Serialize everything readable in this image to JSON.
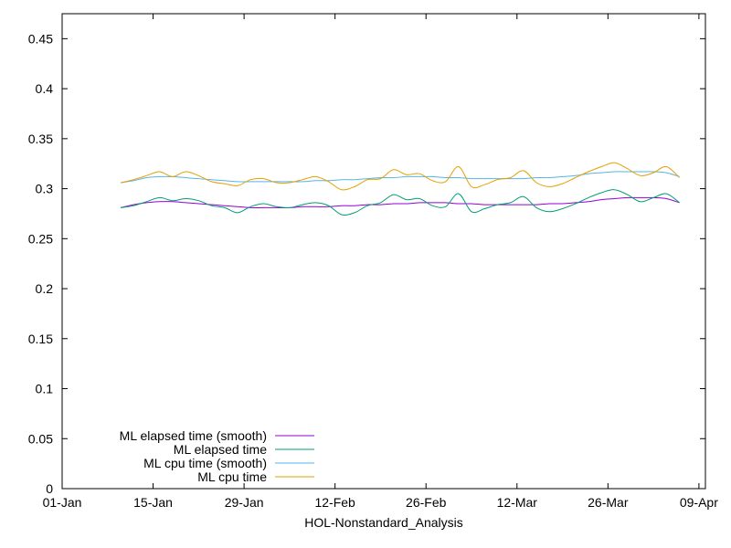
{
  "chart_data": {
    "type": "line",
    "title": "",
    "xlabel": "HOL-Nonstandard_Analysis",
    "ylabel": "",
    "x_ticks": [
      "01-Jan",
      "15-Jan",
      "29-Jan",
      "12-Feb",
      "26-Feb",
      "12-Mar",
      "26-Mar",
      "09-Apr"
    ],
    "x_range": [
      "2020-01-01",
      "2020-04-09"
    ],
    "y_ticks": [
      "0",
      "0.05",
      "0.1",
      "0.15",
      "0.2",
      "0.25",
      "0.3",
      "0.35",
      "0.4",
      "0.45"
    ],
    "ylim": [
      0,
      0.475
    ],
    "grid": false,
    "legend_position": "bottom-left",
    "x": [
      "2020-01-10",
      "2020-01-12",
      "2020-01-14",
      "2020-01-16",
      "2020-01-18",
      "2020-01-20",
      "2020-01-22",
      "2020-01-24",
      "2020-01-26",
      "2020-01-28",
      "2020-01-30",
      "2020-02-01",
      "2020-02-03",
      "2020-02-05",
      "2020-02-07",
      "2020-02-09",
      "2020-02-11",
      "2020-02-13",
      "2020-02-15",
      "2020-02-17",
      "2020-02-19",
      "2020-02-21",
      "2020-02-23",
      "2020-02-25",
      "2020-02-27",
      "2020-02-29",
      "2020-03-02",
      "2020-03-04",
      "2020-03-06",
      "2020-03-08",
      "2020-03-10",
      "2020-03-12",
      "2020-03-14",
      "2020-03-16",
      "2020-03-18",
      "2020-03-20",
      "2020-03-22",
      "2020-03-24",
      "2020-03-26",
      "2020-03-28",
      "2020-03-30",
      "2020-04-01",
      "2020-04-03",
      "2020-04-05"
    ],
    "series": [
      {
        "name": "ML elapsed time (smooth)",
        "color": "#9400d3",
        "values": [
          0.281,
          0.284,
          0.286,
          0.287,
          0.287,
          0.286,
          0.285,
          0.284,
          0.283,
          0.282,
          0.281,
          0.281,
          0.281,
          0.281,
          0.282,
          0.282,
          0.282,
          0.283,
          0.283,
          0.284,
          0.284,
          0.285,
          0.285,
          0.286,
          0.286,
          0.286,
          0.285,
          0.285,
          0.284,
          0.284,
          0.284,
          0.284,
          0.284,
          0.285,
          0.285,
          0.286,
          0.287,
          0.289,
          0.29,
          0.291,
          0.291,
          0.291,
          0.29,
          0.286
        ]
      },
      {
        "name": "ML elapsed time",
        "color": "#009e73",
        "values": [
          0.281,
          0.283,
          0.287,
          0.291,
          0.288,
          0.29,
          0.288,
          0.283,
          0.281,
          0.276,
          0.282,
          0.285,
          0.282,
          0.281,
          0.284,
          0.286,
          0.283,
          0.274,
          0.276,
          0.283,
          0.286,
          0.294,
          0.289,
          0.29,
          0.283,
          0.282,
          0.295,
          0.277,
          0.28,
          0.284,
          0.286,
          0.292,
          0.281,
          0.277,
          0.28,
          0.285,
          0.291,
          0.296,
          0.299,
          0.294,
          0.287,
          0.291,
          0.295,
          0.286
        ]
      },
      {
        "name": "ML cpu time (smooth)",
        "color": "#56b4e9",
        "values": [
          0.306,
          0.308,
          0.311,
          0.312,
          0.312,
          0.311,
          0.31,
          0.309,
          0.308,
          0.307,
          0.307,
          0.307,
          0.307,
          0.307,
          0.307,
          0.308,
          0.308,
          0.309,
          0.309,
          0.31,
          0.311,
          0.311,
          0.312,
          0.312,
          0.312,
          0.311,
          0.311,
          0.31,
          0.31,
          0.31,
          0.31,
          0.31,
          0.311,
          0.311,
          0.312,
          0.313,
          0.315,
          0.316,
          0.317,
          0.317,
          0.317,
          0.317,
          0.316,
          0.312
        ]
      },
      {
        "name": "ML cpu time",
        "color": "#e69f00",
        "values": [
          0.306,
          0.309,
          0.313,
          0.317,
          0.312,
          0.317,
          0.313,
          0.307,
          0.305,
          0.303,
          0.309,
          0.31,
          0.306,
          0.306,
          0.309,
          0.312,
          0.307,
          0.299,
          0.302,
          0.309,
          0.31,
          0.319,
          0.314,
          0.315,
          0.308,
          0.307,
          0.322,
          0.302,
          0.304,
          0.309,
          0.311,
          0.318,
          0.306,
          0.302,
          0.305,
          0.311,
          0.317,
          0.322,
          0.326,
          0.32,
          0.313,
          0.316,
          0.322,
          0.311
        ]
      }
    ]
  }
}
